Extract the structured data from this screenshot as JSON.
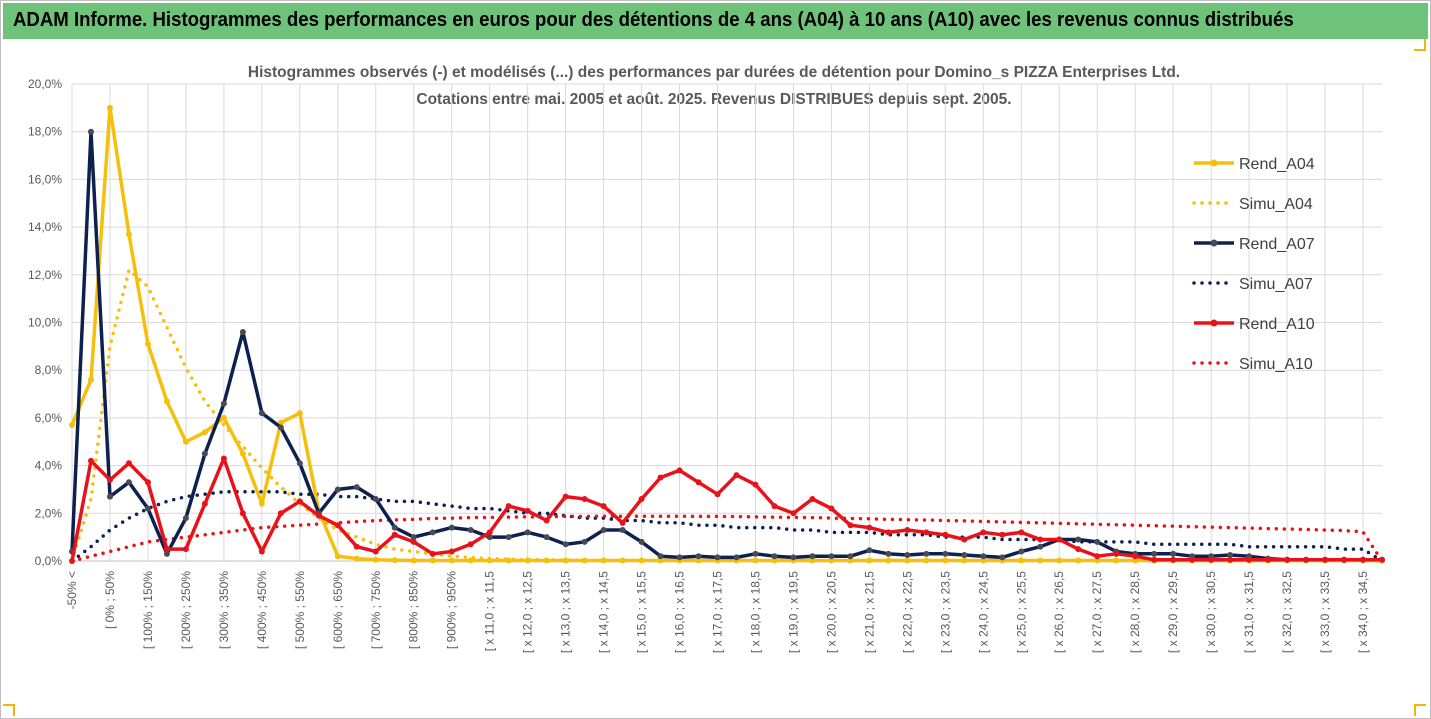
{
  "header": {
    "title": "ADAM Informe. Histogrammes des performances en euros pour des détentions de 4 ans (A04) à 10 ans (A10) avec les revenus connus distribués"
  },
  "colors": {
    "header_bg": "#6fc27a",
    "a04": "#f5bf0c",
    "a07": "#0d2150",
    "a10": "#e8131a",
    "grid": "#d9d9d9"
  },
  "chart_data": {
    "type": "line",
    "title": "Histogrammes observés (-) et modélisés (...) des performances par durées de détention pour Domino_s PIZZA Enterprises Ltd.",
    "subtitle": "Cotations entre mai. 2005 et août. 2025. Revenus DISTRIBUES depuis sept. 2005.",
    "xlabel": "",
    "ylabel": "",
    "ylim": [
      0,
      20
    ],
    "yticks": [
      "0,0%",
      "2,0%",
      "4,0%",
      "6,0%",
      "8,0%",
      "10,0%",
      "12,0%",
      "14,0%",
      "16,0%",
      "18,0%",
      "20,0%"
    ],
    "grid": true,
    "legend_position": "right",
    "xtick_labels": [
      "-50% <",
      "[ 0% ; 50%",
      "[ 100% ; 150%",
      "[ 200% ; 250%",
      "[ 300% ; 350%",
      "[ 400% ; 450%",
      "[ 500% ; 550%",
      "[ 600% ; 650%",
      "[ 700% ; 750%",
      "[ 800% ; 850%",
      "[ 900% ; 950%",
      "[ x 11,0 ; x 11,5",
      "[ x 12,0 ; x 12,5",
      "[ x 13,0 ; x 13,5",
      "[ x 14,0 ; x 14,5",
      "[ x 15,0 ; x 15,5",
      "[ x 16,0 ; x 16,5",
      "[ x 17,0 ; x 17,5",
      "[ x 18,0 ; x 18,5",
      "[ x 19,0 ; x 19,5",
      "[ x 20,0 ; x 20,5",
      "[ x 21,0 ; x 21,5",
      "[ x 22,0 ; x 22,5",
      "[ x 23,0 ; x 23,5",
      "[ x 24,0 ; x 24,5",
      "[ x 25,0 ; x 25,5",
      "[ x 26,0 ; x 26,5",
      "[ x 27,0 ; x 27,5",
      "[ x 28,0 ; x 28,5",
      "[ x 29,0 ; x 29,5",
      "[ x 30,0 ; x 30,5",
      "[ x 31,0 ; x 31,5",
      "[ x 32,0 ; x 32,5",
      "[ x 33,0 ; x 33,5",
      "[ x 34,0 ; x 34,5"
    ],
    "xtick_every": 2,
    "series": [
      {
        "name": "Rend_A04",
        "style": "solid",
        "color": "#f5bf0c",
        "values": [
          5.7,
          7.6,
          19.0,
          13.7,
          9.1,
          6.7,
          5.0,
          5.4,
          6.0,
          4.5,
          2.4,
          5.8,
          6.2,
          2.1,
          0.2,
          0.1,
          0.05,
          0.03,
          0.02,
          0.02,
          0.02,
          0.02,
          0.02,
          0.02,
          0.02,
          0.02,
          0.02,
          0.02,
          0.02,
          0.02,
          0.02,
          0.02,
          0.02,
          0.02,
          0.02,
          0.02,
          0.02,
          0.02,
          0.02,
          0.02,
          0.02,
          0.02,
          0.02,
          0.02,
          0.02,
          0.02,
          0.02,
          0.02,
          0.02,
          0.02,
          0.02,
          0.02,
          0.02,
          0.02,
          0.02,
          0.02,
          0.02,
          0.02,
          0.02,
          0.02,
          0.02,
          0.02,
          0.02,
          0.02,
          0.02,
          0.02,
          0.02,
          0.02,
          0.02,
          0.02
        ]
      },
      {
        "name": "Simu_A04",
        "style": "dotted",
        "color": "#f5bf0c",
        "values": [
          0.0,
          2.6,
          9.0,
          12.2,
          11.5,
          9.8,
          8.1,
          6.7,
          5.7,
          4.8,
          3.9,
          3.1,
          2.4,
          1.8,
          1.3,
          1.0,
          0.7,
          0.5,
          0.4,
          0.3,
          0.2,
          0.15,
          0.1,
          0.08,
          0.05,
          0.05,
          0.04,
          0.03,
          0.02,
          0.02,
          0.02,
          0.02,
          0.02,
          0.02,
          0.02,
          0.02,
          0.02,
          0.02,
          0.02,
          0.02,
          0.02,
          0.02,
          0.02,
          0.02,
          0.02,
          0.02,
          0.02,
          0.02,
          0.02,
          0.02,
          0.02,
          0.02,
          0.02,
          0.02,
          0.02,
          0.02,
          0.02,
          0.02,
          0.02,
          0.02,
          0.02,
          0.02,
          0.02,
          0.02,
          0.02,
          0.02,
          0.02,
          0.02,
          0.02,
          0.0
        ]
      },
      {
        "name": "Rend_A07",
        "style": "solid",
        "color": "#0d2150",
        "values": [
          0.4,
          18.0,
          2.7,
          3.3,
          2.2,
          0.3,
          1.8,
          4.5,
          6.6,
          9.6,
          6.2,
          5.6,
          4.1,
          2.0,
          3.0,
          3.1,
          2.6,
          1.4,
          1.0,
          1.2,
          1.4,
          1.3,
          1.0,
          1.0,
          1.2,
          1.0,
          0.7,
          0.8,
          1.3,
          1.3,
          0.8,
          0.2,
          0.15,
          0.2,
          0.15,
          0.15,
          0.3,
          0.2,
          0.15,
          0.2,
          0.2,
          0.2,
          0.45,
          0.3,
          0.25,
          0.3,
          0.3,
          0.25,
          0.2,
          0.15,
          0.4,
          0.6,
          0.9,
          0.9,
          0.8,
          0.4,
          0.3,
          0.3,
          0.3,
          0.2,
          0.2,
          0.25,
          0.2,
          0.1,
          0.05,
          0.05,
          0.05,
          0.05,
          0.05,
          0.05
        ]
      },
      {
        "name": "Simu_A07",
        "style": "dotted",
        "color": "#0d2150",
        "values": [
          0.0,
          0.6,
          1.3,
          1.8,
          2.2,
          2.5,
          2.7,
          2.8,
          2.9,
          2.9,
          2.9,
          2.9,
          2.8,
          2.8,
          2.7,
          2.7,
          2.6,
          2.5,
          2.5,
          2.4,
          2.3,
          2.2,
          2.2,
          2.1,
          2.0,
          2.0,
          1.9,
          1.8,
          1.8,
          1.7,
          1.7,
          1.6,
          1.6,
          1.5,
          1.5,
          1.4,
          1.4,
          1.4,
          1.3,
          1.3,
          1.2,
          1.2,
          1.2,
          1.1,
          1.1,
          1.1,
          1.0,
          1.0,
          1.0,
          0.9,
          0.9,
          0.9,
          0.9,
          0.8,
          0.8,
          0.8,
          0.8,
          0.7,
          0.7,
          0.7,
          0.7,
          0.7,
          0.6,
          0.6,
          0.6,
          0.6,
          0.6,
          0.5,
          0.5,
          0.0
        ]
      },
      {
        "name": "Rend_A10",
        "style": "solid",
        "color": "#e8131a",
        "values": [
          0.0,
          4.2,
          3.4,
          4.1,
          3.3,
          0.5,
          0.5,
          2.4,
          4.3,
          2.0,
          0.4,
          2.0,
          2.5,
          1.9,
          1.5,
          0.6,
          0.4,
          1.1,
          0.8,
          0.3,
          0.4,
          0.7,
          1.2,
          2.3,
          2.1,
          1.7,
          2.7,
          2.6,
          2.3,
          1.6,
          2.6,
          3.5,
          3.8,
          3.3,
          2.8,
          3.6,
          3.2,
          2.3,
          2.0,
          2.6,
          2.2,
          1.5,
          1.4,
          1.2,
          1.3,
          1.2,
          1.1,
          0.9,
          1.2,
          1.1,
          1.2,
          0.9,
          0.9,
          0.5,
          0.2,
          0.3,
          0.2,
          0.05,
          0.05,
          0.05,
          0.05,
          0.05,
          0.05,
          0.05,
          0.05,
          0.05,
          0.05,
          0.05,
          0.05,
          0.05
        ]
      },
      {
        "name": "Simu_A10",
        "style": "dotted",
        "color": "#e8131a",
        "values": [
          0.0,
          0.2,
          0.4,
          0.6,
          0.8,
          0.9,
          1.0,
          1.1,
          1.2,
          1.3,
          1.4,
          1.45,
          1.5,
          1.55,
          1.6,
          1.65,
          1.7,
          1.72,
          1.75,
          1.78,
          1.8,
          1.82,
          1.83,
          1.84,
          1.85,
          1.86,
          1.87,
          1.87,
          1.88,
          1.88,
          1.88,
          1.88,
          1.88,
          1.87,
          1.87,
          1.86,
          1.85,
          1.84,
          1.83,
          1.82,
          1.8,
          1.78,
          1.77,
          1.75,
          1.73,
          1.72,
          1.7,
          1.68,
          1.66,
          1.64,
          1.62,
          1.6,
          1.58,
          1.56,
          1.54,
          1.52,
          1.5,
          1.48,
          1.46,
          1.44,
          1.42,
          1.4,
          1.38,
          1.36,
          1.34,
          1.32,
          1.3,
          1.28,
          1.22,
          0.0
        ]
      }
    ]
  }
}
